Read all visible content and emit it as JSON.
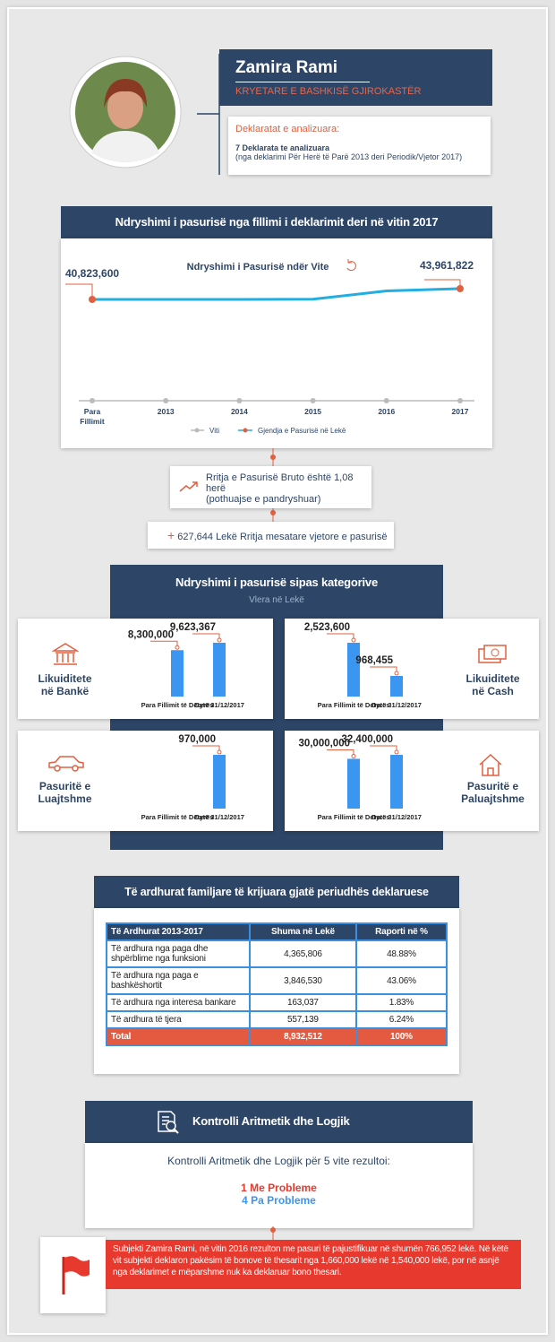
{
  "header": {
    "name": "Zamira Rami",
    "role": "KRYETARE E BASHKISË GJIROKASTËR",
    "declarations_title": "Deklaratat e analizuara:",
    "declarations_count": "7 Deklarata te analizuara",
    "declarations_range": "(nga deklarimi Për Herë të Parë 2013 deri Periodik/Vjetor 2017)"
  },
  "wealth_section": {
    "title": "Ndryshimi i pasurisë nga fillimi i deklarimit deri në vitin 2017",
    "growth_factor": "Rritja e Pasurisë Bruto është 1,08 herë",
    "growth_note": "(pothuajse e pandryshuar)",
    "annual_growth_sign": "+",
    "annual_growth": "627,644  Lekë Rritja mesatare vjetore e pasurisë"
  },
  "category_section": {
    "title": "Ndryshimi i pasurisë sipas kategorive",
    "subtitle": "Vlera në Lekë"
  },
  "chart_data": [
    {
      "type": "line",
      "title": "Ndryshimi i Pasurisë ndër Vite",
      "x_legend": "Viti",
      "categories": [
        "Para Fillimit",
        "2013",
        "2014",
        "2015",
        "2016",
        "2017"
      ],
      "series": [
        {
          "name": "Gjendja e Pasurisë në Lekë",
          "color": "#22aee0",
          "values": [
            40823600,
            40823600,
            40823600,
            40900000,
            43300000,
            43961822
          ],
          "value_labels": [
            "40,823,600",
            null,
            null,
            null,
            null,
            "43,961,822"
          ]
        }
      ]
    },
    {
      "type": "bar",
      "title": "Likuiditete në Bankë",
      "color": "#3a96f0",
      "categories": [
        "Para Fillimit të Detyrës",
        "Datë 31/12/2017"
      ],
      "values": [
        8300000,
        9623367
      ],
      "value_labels": [
        "8,300,000",
        "9,623,367"
      ]
    },
    {
      "type": "bar",
      "title": "Likuiditete në Cash",
      "color": "#3a96f0",
      "categories": [
        "Para Fillimit të Detyrës",
        "Datë 31/12/2017"
      ],
      "values": [
        2523600,
        968455
      ],
      "value_labels": [
        "2,523,600",
        "968,455"
      ]
    },
    {
      "type": "bar",
      "title": "Pasuritë e Luajtshme",
      "color": "#3a96f0",
      "categories": [
        "Para Fillimit të Detyrës",
        "Datë 31/12/2017"
      ],
      "values": [
        null,
        970000
      ],
      "value_labels": [
        null,
        "970,000"
      ]
    },
    {
      "type": "bar",
      "title": "Pasuritë e Paluajtshme",
      "color": "#3a96f0",
      "categories": [
        "Para Fillimit të Detyrës",
        "Datë 31/12/2017"
      ],
      "values": [
        30000000,
        32400000
      ],
      "value_labels": [
        "30,000,000",
        "32,400,000"
      ]
    }
  ],
  "income_section": {
    "title": "Të ardhurat familjare të krijuara gjatë periudhës deklaruese",
    "table": {
      "columns": [
        "Të Ardhurat 2013-2017",
        "Shuma në Lekë",
        "Raporti në %"
      ],
      "rows": [
        [
          "Të ardhura nga paga dhe shpërblime nga funksioni",
          "4,365,806",
          "48.88%"
        ],
        [
          "Të ardhura nga paga e bashkëshortit",
          "3,846,530",
          "43.06%"
        ],
        [
          "Të ardhura nga interesa bankare",
          "163,037",
          "1.83%"
        ],
        [
          "Të ardhura të tjera",
          "557,139",
          "6.24%"
        ]
      ],
      "total": [
        "Total",
        "8,932,512",
        "100%"
      ]
    }
  },
  "control_section": {
    "title": "Kontrolli Aritmetik dhe Logjik",
    "summary": "Kontrolli Aritmetik dhe Logjik për 5 vite rezultoi:",
    "with_problems": "1 Me Probleme",
    "without_problems": "4 Pa Probleme"
  },
  "note": "Subjekti Zamira Rami, në vitin 2016 rezulton me pasuri të pajustifikuar në shumën 766,952 lekë. Në këtë vit subjekti deklaron pakësim të bonove të thesarit nga 1,660,000 lekë në 1,540,000 lekë, por në asnjë nga deklarimet e mëparshme nuk ka deklaruar bono thesari."
}
